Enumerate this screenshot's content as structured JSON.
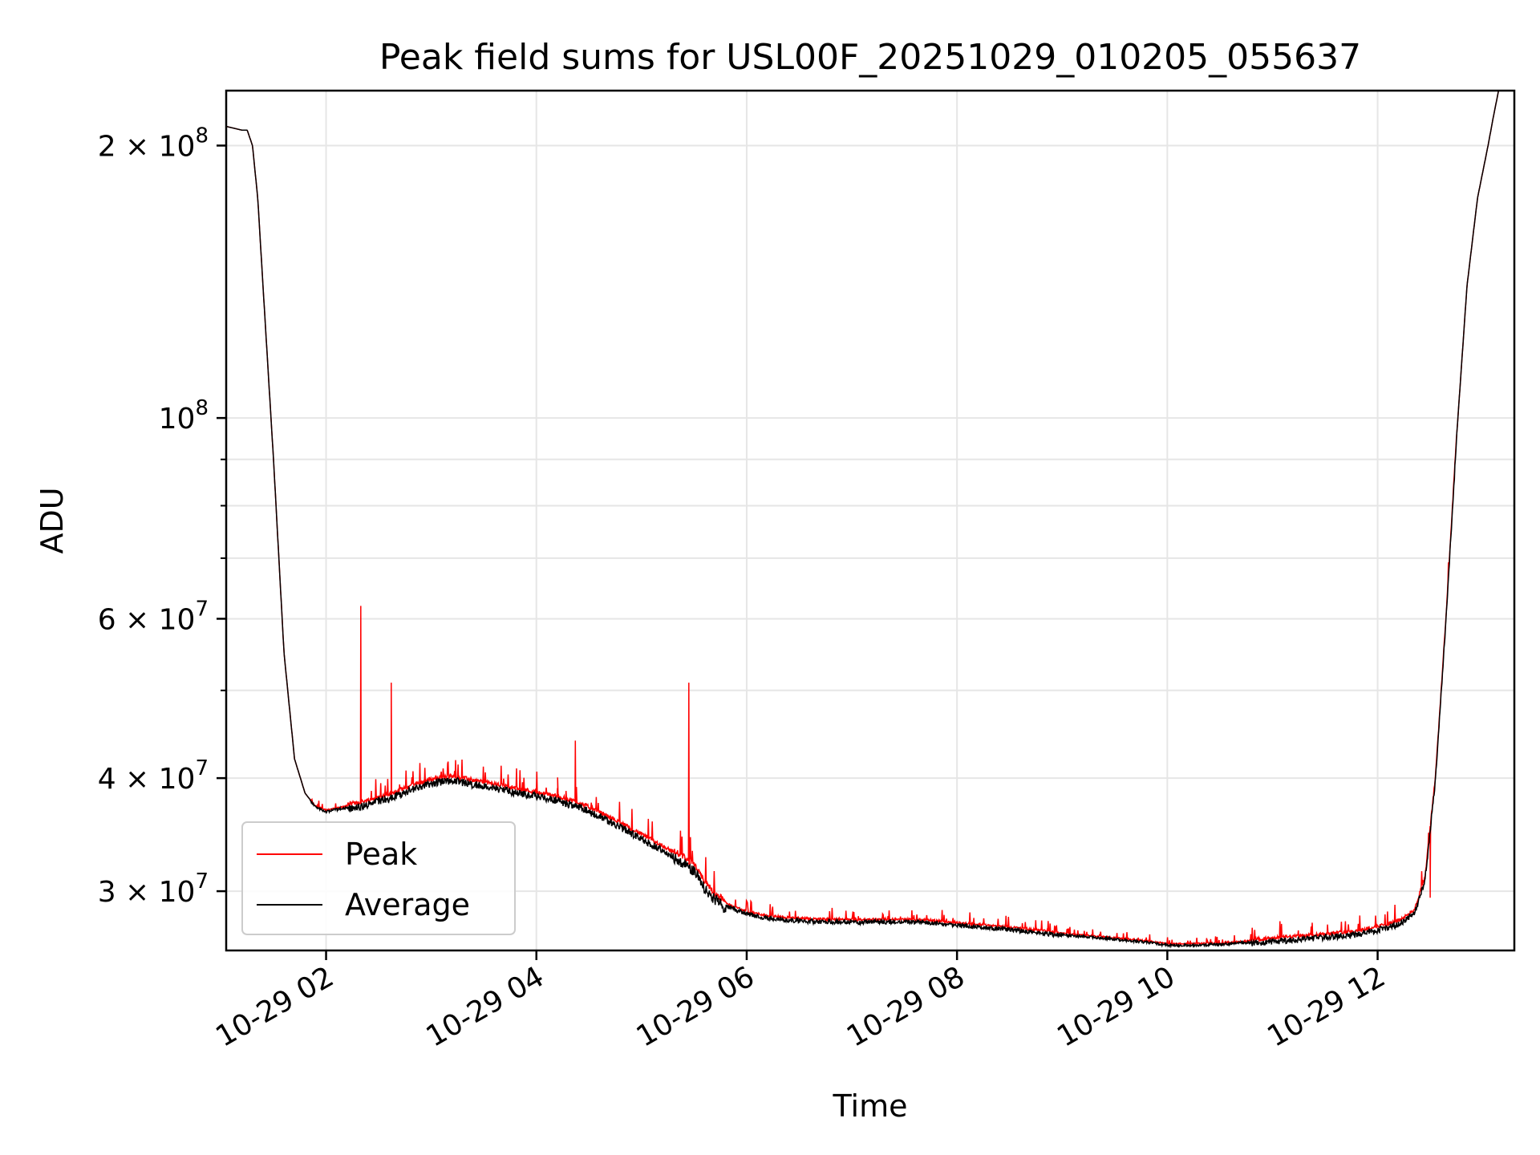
{
  "chart_data": {
    "type": "line",
    "title": "Peak field sums for USL00F_20251029_010205_055637",
    "xlabel": "Time",
    "ylabel": "ADU",
    "yscale": "log",
    "ylim": [
      25800000,
      230000000
    ],
    "xlim": [
      1.05,
      13.3
    ],
    "x_unit": "hours since 10-29 00:00",
    "x_ticks": [
      {
        "value": 2,
        "label": "10-29 02"
      },
      {
        "value": 4,
        "label": "10-29 04"
      },
      {
        "value": 6,
        "label": "10-29 06"
      },
      {
        "value": 8,
        "label": "10-29 08"
      },
      {
        "value": 10,
        "label": "10-29 10"
      },
      {
        "value": 12,
        "label": "10-29 12"
      }
    ],
    "y_ticks": [
      {
        "value": 30000000,
        "coef": "3",
        "exp": "7"
      },
      {
        "value": 40000000,
        "coef": "4",
        "exp": "7"
      },
      {
        "value": 60000000,
        "coef": "6",
        "exp": "7"
      },
      {
        "value": 100000000,
        "coef": "",
        "exp": "8"
      },
      {
        "value": 200000000,
        "coef": "2",
        "exp": "8"
      }
    ],
    "y_minor_ticks": [
      50000000,
      70000000,
      80000000,
      90000000
    ],
    "grid": true,
    "legend_position": "lower-left",
    "series": [
      {
        "name": "Peak",
        "color": "#ff0000"
      },
      {
        "name": "Average",
        "color": "#000000"
      }
    ],
    "baseline": {
      "x": [
        1.05,
        1.2,
        1.25,
        1.3,
        1.35,
        1.4,
        1.5,
        1.6,
        1.7,
        1.8,
        1.9,
        2.0,
        2.2,
        2.4,
        2.6,
        2.8,
        3.0,
        3.2,
        3.4,
        3.6,
        3.8,
        4.0,
        4.2,
        4.4,
        4.6,
        4.8,
        5.0,
        5.2,
        5.4,
        5.5,
        5.6,
        5.7,
        5.8,
        5.9,
        6.0,
        6.2,
        6.5,
        7.0,
        7.3,
        7.7,
        8.0,
        8.5,
        9.0,
        9.5,
        9.8,
        10.0,
        10.2,
        10.5,
        10.8,
        11.0,
        11.5,
        11.8,
        12.0,
        12.2,
        12.35,
        12.45,
        12.55,
        12.65,
        12.75,
        12.85,
        12.95,
        13.05,
        13.1,
        13.15,
        13.3
      ],
      "y": [
        210000000,
        208000000,
        208000000,
        200000000,
        175000000,
        140000000,
        90000000,
        55000000,
        42000000,
        38500000,
        37200000,
        36800000,
        37200000,
        37600000,
        38200000,
        39000000,
        39700000,
        40000000,
        39600000,
        39200000,
        38800000,
        38400000,
        38000000,
        37400000,
        36500000,
        35500000,
        34500000,
        33500000,
        32500000,
        31800000,
        30500000,
        29600000,
        29000000,
        28700000,
        28400000,
        28100000,
        27900000,
        27800000,
        27850000,
        27800000,
        27600000,
        27300000,
        26900000,
        26600000,
        26400000,
        26200000,
        26200000,
        26250000,
        26400000,
        26500000,
        26800000,
        27000000,
        27300000,
        27700000,
        28500000,
        31000000,
        40000000,
        60000000,
        95000000,
        140000000,
        175000000,
        200000000,
        215000000,
        230000000,
        230000000
      ]
    },
    "peak_spikes": [
      {
        "x": 2.33,
        "y": 62000000
      },
      {
        "x": 2.62,
        "y": 51000000
      },
      {
        "x": 4.37,
        "y": 44000000
      },
      {
        "x": 5.45,
        "y": 51000000
      },
      {
        "x": 4.2,
        "y": 39000000
      },
      {
        "x": 12.5,
        "y": 29500000
      }
    ]
  }
}
